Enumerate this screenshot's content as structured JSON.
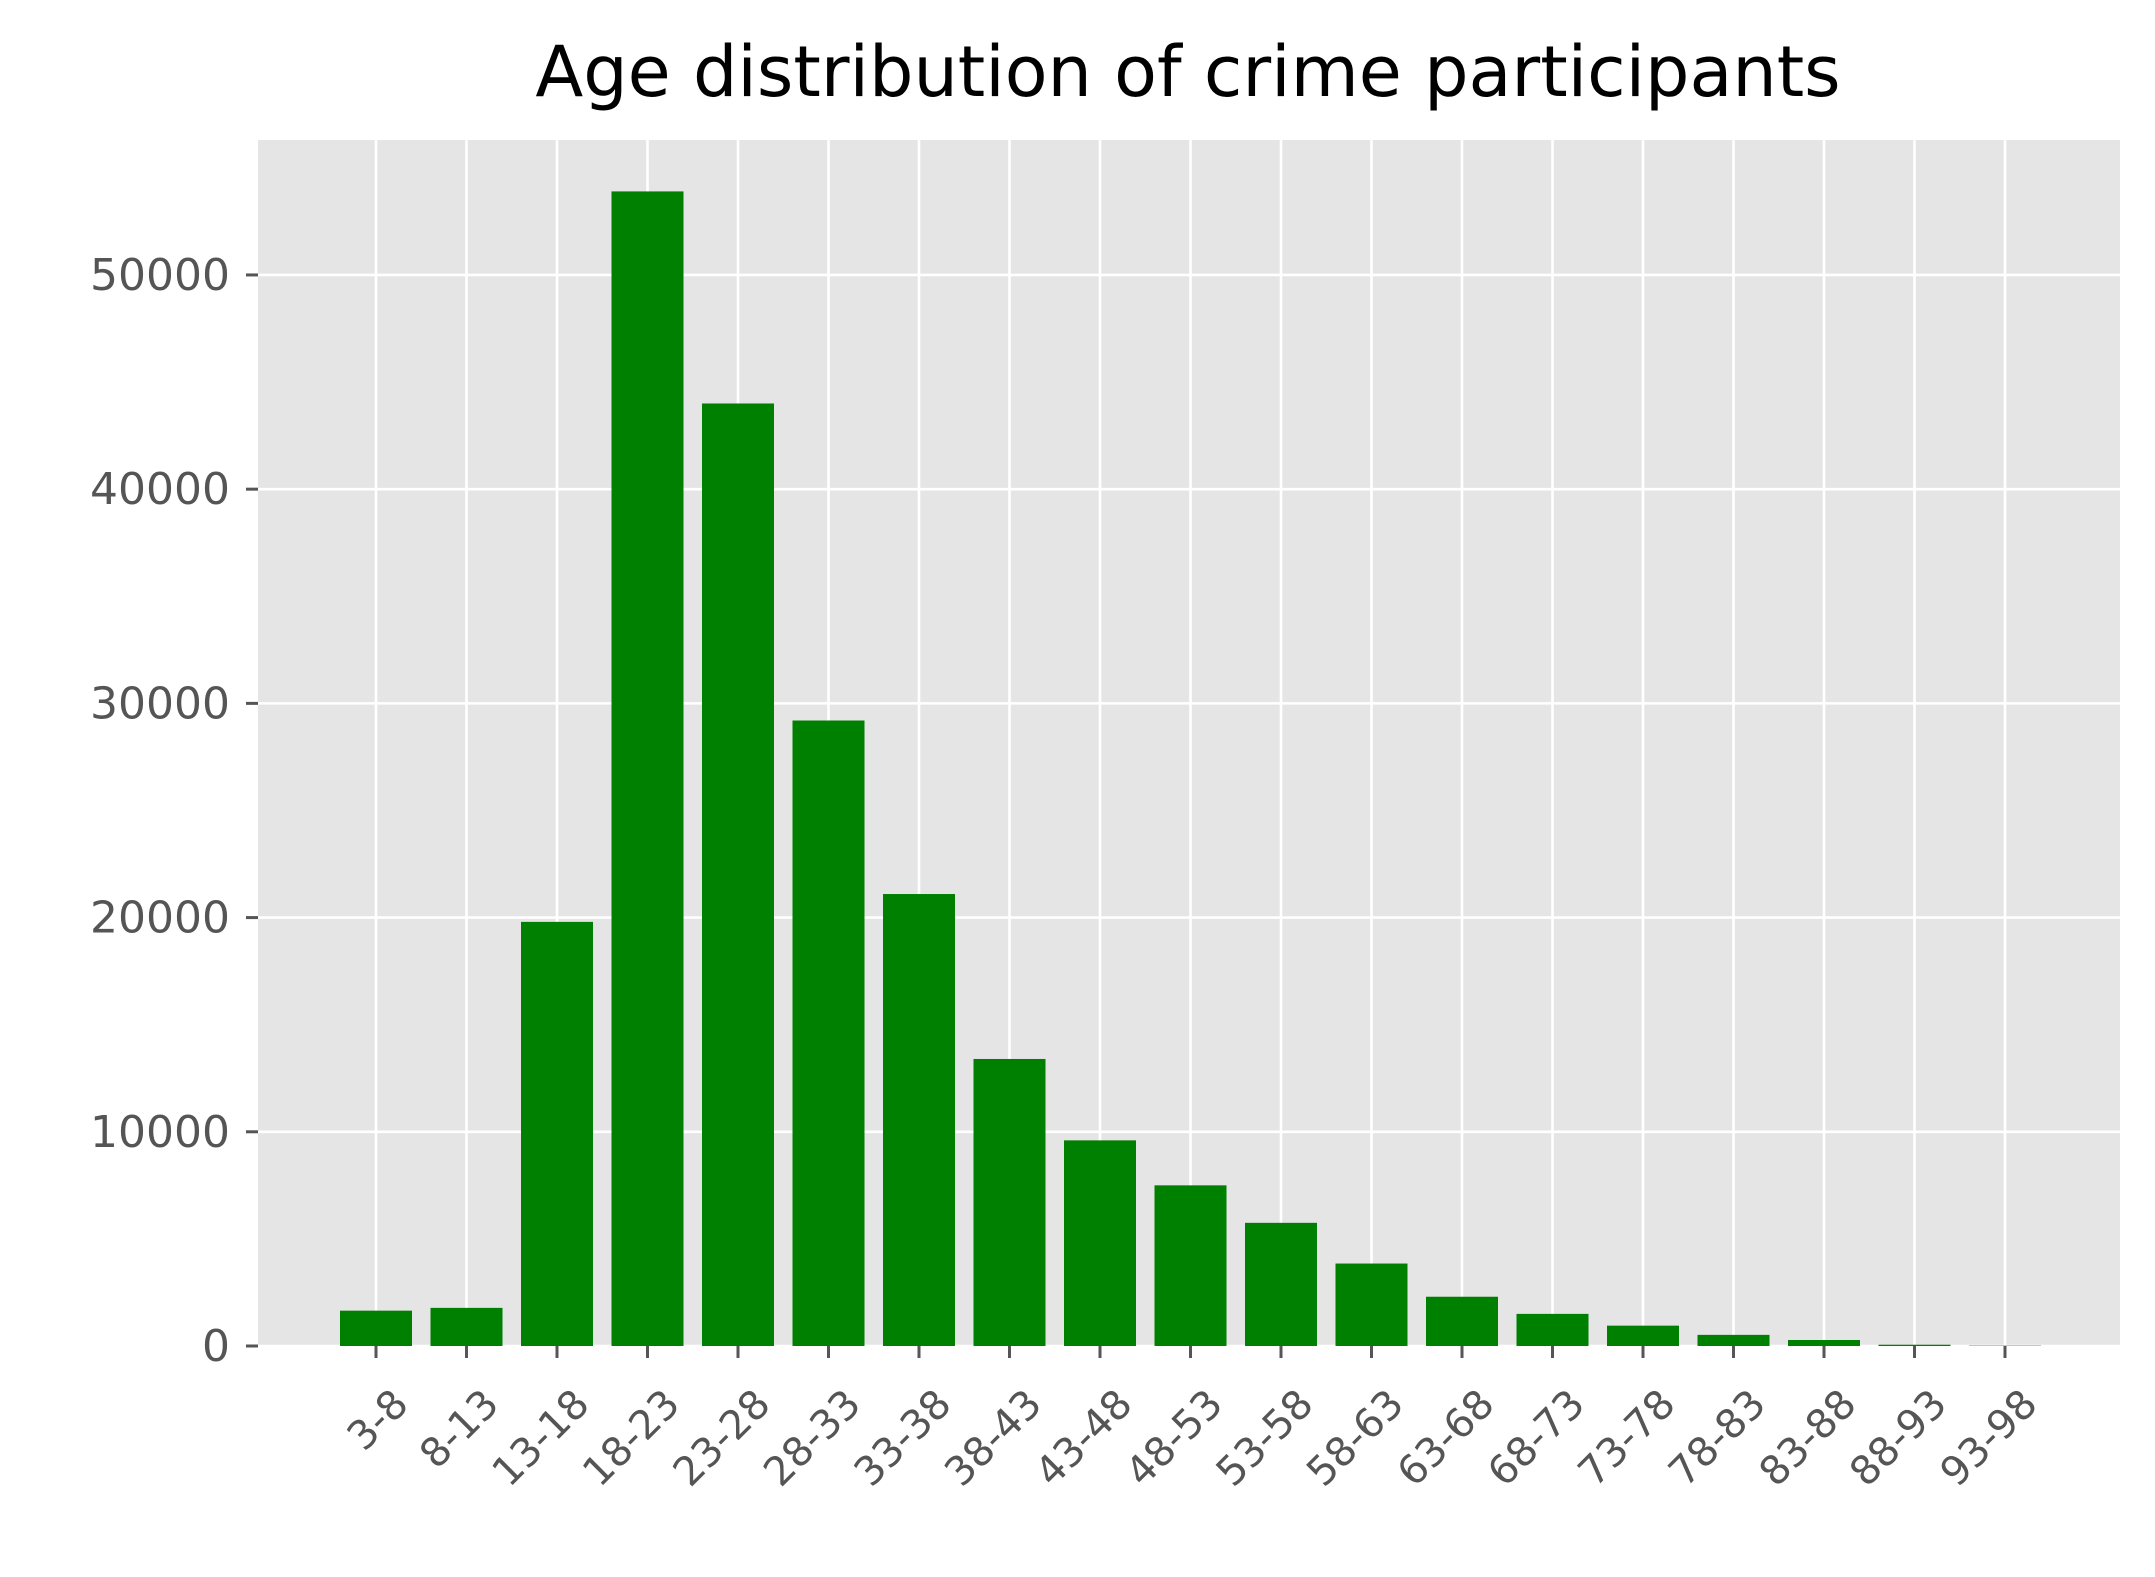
{
  "chart_data": {
    "type": "bar",
    "title": "Age distribution of crime participants",
    "xlabel": "",
    "ylabel": "",
    "categories": [
      "3-8",
      "8-13",
      "13-18",
      "18-23",
      "23-28",
      "28-33",
      "33-38",
      "38-43",
      "43-48",
      "48-53",
      "53-58",
      "58-63",
      "63-68",
      "68-73",
      "73-78",
      "78-83",
      "83-88",
      "88-93",
      "93-98"
    ],
    "values": [
      1650,
      1780,
      19800,
      53900,
      44000,
      29200,
      21100,
      13400,
      9600,
      7500,
      5750,
      3850,
      2300,
      1500,
      950,
      520,
      280,
      60,
      15
    ],
    "yticks": [
      0,
      10000,
      20000,
      30000,
      40000,
      50000
    ],
    "ylim": [
      0,
      56300
    ],
    "grid": true,
    "legend": "none",
    "colors": {
      "bar": "#008000",
      "plot_background": "#e5e5e5",
      "grid": "#ffffff",
      "tick_label": "#555555",
      "title": "#000000"
    }
  }
}
